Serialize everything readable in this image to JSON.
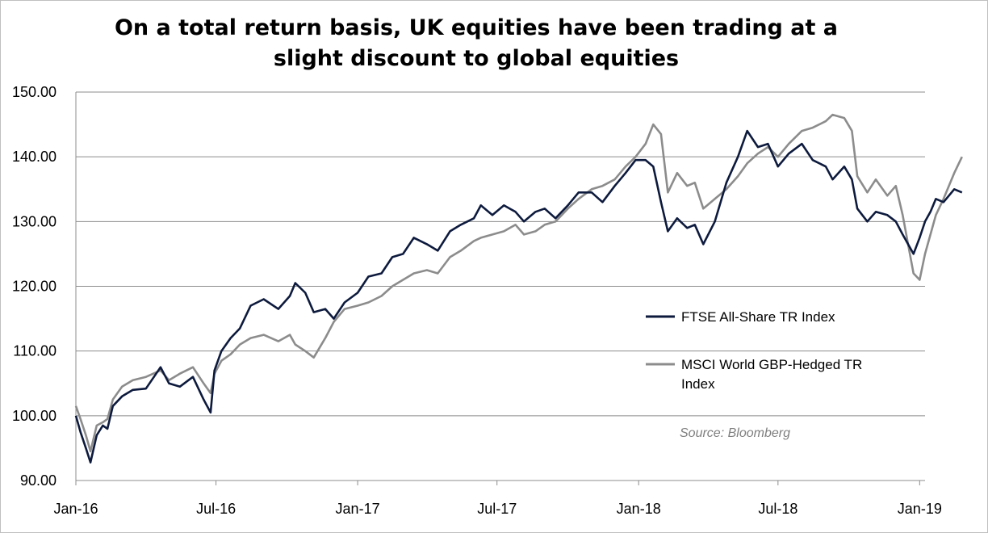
{
  "chart_data": {
    "type": "line",
    "title_line1": "On a total return basis, UK equities have been trading at a",
    "title_line2": "slight discount to global equities",
    "xlabel": "",
    "ylabel": "",
    "ylim": [
      90,
      150
    ],
    "y_ticks": [
      "90.00",
      "100.00",
      "110.00",
      "120.00",
      "130.00",
      "140.00",
      "150.00"
    ],
    "x_ticks": [
      "Jan-16",
      "Jul-16",
      "Jan-17",
      "Jul-17",
      "Jan-18",
      "Jul-18",
      "Jan-19"
    ],
    "x_tick_dates": [
      "2016-01-01",
      "2016-07-01",
      "2017-01-01",
      "2017-07-01",
      "2018-01-01",
      "2018-07-01",
      "2019-01-01"
    ],
    "x_range": [
      "2016-01-01",
      "2019-01-08"
    ],
    "grid": "horizontal",
    "legend_placement": "right",
    "source": "Source: Bloomberg",
    "series": [
      {
        "name": "FTSE All-Share TR Index",
        "color": "#0d1a3d",
        "points": [
          [
            "2016-01-01",
            100.0
          ],
          [
            "2016-01-07",
            97.5
          ],
          [
            "2016-01-14",
            95.0
          ],
          [
            "2016-01-20",
            92.8
          ],
          [
            "2016-01-28",
            97.0
          ],
          [
            "2016-02-05",
            98.5
          ],
          [
            "2016-02-11",
            98.0
          ],
          [
            "2016-02-18",
            101.5
          ],
          [
            "2016-03-01",
            103.0
          ],
          [
            "2016-03-15",
            104.0
          ],
          [
            "2016-04-01",
            104.2
          ],
          [
            "2016-04-20",
            107.5
          ],
          [
            "2016-05-01",
            105.0
          ],
          [
            "2016-05-15",
            104.5
          ],
          [
            "2016-06-01",
            106.0
          ],
          [
            "2016-06-15",
            102.5
          ],
          [
            "2016-06-24",
            100.5
          ],
          [
            "2016-06-29",
            107.0
          ],
          [
            "2016-07-08",
            110.0
          ],
          [
            "2016-07-20",
            112.0
          ],
          [
            "2016-08-01",
            113.5
          ],
          [
            "2016-08-15",
            117.0
          ],
          [
            "2016-09-01",
            118.0
          ],
          [
            "2016-09-20",
            116.5
          ],
          [
            "2016-10-05",
            118.5
          ],
          [
            "2016-10-12",
            120.5
          ],
          [
            "2016-10-25",
            119.0
          ],
          [
            "2016-11-05",
            116.0
          ],
          [
            "2016-11-20",
            116.5
          ],
          [
            "2016-12-01",
            115.0
          ],
          [
            "2016-12-15",
            117.5
          ],
          [
            "2017-01-01",
            119.0
          ],
          [
            "2017-01-15",
            121.5
          ],
          [
            "2017-02-01",
            122.0
          ],
          [
            "2017-02-15",
            124.5
          ],
          [
            "2017-03-01",
            125.0
          ],
          [
            "2017-03-15",
            127.5
          ],
          [
            "2017-04-01",
            126.5
          ],
          [
            "2017-04-15",
            125.5
          ],
          [
            "2017-05-01",
            128.5
          ],
          [
            "2017-05-15",
            129.5
          ],
          [
            "2017-06-01",
            130.5
          ],
          [
            "2017-06-10",
            132.5
          ],
          [
            "2017-06-25",
            131.0
          ],
          [
            "2017-07-10",
            132.5
          ],
          [
            "2017-07-25",
            131.5
          ],
          [
            "2017-08-05",
            130.0
          ],
          [
            "2017-08-20",
            131.5
          ],
          [
            "2017-09-01",
            132.0
          ],
          [
            "2017-09-15",
            130.5
          ],
          [
            "2017-10-01",
            132.5
          ],
          [
            "2017-10-15",
            134.5
          ],
          [
            "2017-11-01",
            134.5
          ],
          [
            "2017-11-15",
            133.0
          ],
          [
            "2017-12-01",
            135.5
          ],
          [
            "2017-12-15",
            137.5
          ],
          [
            "2017-12-28",
            139.5
          ],
          [
            "2018-01-10",
            139.5
          ],
          [
            "2018-01-20",
            138.5
          ],
          [
            "2018-01-30",
            133.0
          ],
          [
            "2018-02-08",
            128.5
          ],
          [
            "2018-02-20",
            130.5
          ],
          [
            "2018-03-05",
            129.0
          ],
          [
            "2018-03-15",
            129.5
          ],
          [
            "2018-03-26",
            126.5
          ],
          [
            "2018-04-10",
            130.0
          ],
          [
            "2018-04-25",
            136.0
          ],
          [
            "2018-05-10",
            140.0
          ],
          [
            "2018-05-22",
            144.0
          ],
          [
            "2018-06-05",
            141.5
          ],
          [
            "2018-06-18",
            142.0
          ],
          [
            "2018-07-01",
            138.5
          ],
          [
            "2018-07-15",
            140.5
          ],
          [
            "2018-08-01",
            142.0
          ],
          [
            "2018-08-15",
            139.5
          ],
          [
            "2018-09-01",
            138.5
          ],
          [
            "2018-09-10",
            136.5
          ],
          [
            "2018-09-25",
            138.5
          ],
          [
            "2018-10-05",
            136.5
          ],
          [
            "2018-10-12",
            132.0
          ],
          [
            "2018-10-25",
            130.0
          ],
          [
            "2018-11-05",
            131.5
          ],
          [
            "2018-11-20",
            131.0
          ],
          [
            "2018-12-01",
            130.0
          ],
          [
            "2018-12-10",
            128.0
          ],
          [
            "2018-12-24",
            125.0
          ],
          [
            "2019-01-01",
            127.5
          ],
          [
            "2019-01-08",
            130.0
          ],
          [
            "2019-01-15",
            131.5
          ],
          [
            "2019-01-22",
            133.5
          ],
          [
            "2019-02-01",
            133.0
          ],
          [
            "2019-02-15",
            135.0
          ],
          [
            "2019-02-25",
            134.5
          ]
        ]
      },
      {
        "name": "MSCI World GBP-Hedged TR Index",
        "color": "#8c8c8c",
        "points": [
          [
            "2016-01-01",
            101.5
          ],
          [
            "2016-01-07",
            99.5
          ],
          [
            "2016-01-14",
            97.0
          ],
          [
            "2016-01-20",
            94.5
          ],
          [
            "2016-01-28",
            98.5
          ],
          [
            "2016-02-05",
            99.0
          ],
          [
            "2016-02-11",
            99.5
          ],
          [
            "2016-02-18",
            102.5
          ],
          [
            "2016-03-01",
            104.5
          ],
          [
            "2016-03-15",
            105.5
          ],
          [
            "2016-04-01",
            106.0
          ],
          [
            "2016-04-20",
            107.0
          ],
          [
            "2016-05-01",
            105.5
          ],
          [
            "2016-05-15",
            106.5
          ],
          [
            "2016-06-01",
            107.5
          ],
          [
            "2016-06-15",
            105.0
          ],
          [
            "2016-06-24",
            103.5
          ],
          [
            "2016-06-29",
            106.5
          ],
          [
            "2016-07-08",
            108.5
          ],
          [
            "2016-07-20",
            109.5
          ],
          [
            "2016-08-01",
            111.0
          ],
          [
            "2016-08-15",
            112.0
          ],
          [
            "2016-09-01",
            112.5
          ],
          [
            "2016-09-20",
            111.5
          ],
          [
            "2016-10-05",
            112.5
          ],
          [
            "2016-10-12",
            111.0
          ],
          [
            "2016-10-25",
            110.0
          ],
          [
            "2016-11-05",
            109.0
          ],
          [
            "2016-11-20",
            112.0
          ],
          [
            "2016-12-01",
            114.5
          ],
          [
            "2016-12-15",
            116.5
          ],
          [
            "2017-01-01",
            117.0
          ],
          [
            "2017-01-15",
            117.5
          ],
          [
            "2017-02-01",
            118.5
          ],
          [
            "2017-02-15",
            120.0
          ],
          [
            "2017-03-01",
            121.0
          ],
          [
            "2017-03-15",
            122.0
          ],
          [
            "2017-04-01",
            122.5
          ],
          [
            "2017-04-15",
            122.0
          ],
          [
            "2017-05-01",
            124.5
          ],
          [
            "2017-05-15",
            125.5
          ],
          [
            "2017-06-01",
            127.0
          ],
          [
            "2017-06-10",
            127.5
          ],
          [
            "2017-06-25",
            128.0
          ],
          [
            "2017-07-10",
            128.5
          ],
          [
            "2017-07-25",
            129.5
          ],
          [
            "2017-08-05",
            128.0
          ],
          [
            "2017-08-20",
            128.5
          ],
          [
            "2017-09-01",
            129.5
          ],
          [
            "2017-09-15",
            130.0
          ],
          [
            "2017-10-01",
            132.0
          ],
          [
            "2017-10-15",
            133.5
          ],
          [
            "2017-11-01",
            135.0
          ],
          [
            "2017-11-15",
            135.5
          ],
          [
            "2017-12-01",
            136.5
          ],
          [
            "2017-12-15",
            138.5
          ],
          [
            "2017-12-28",
            140.0
          ],
          [
            "2018-01-10",
            142.0
          ],
          [
            "2018-01-20",
            145.0
          ],
          [
            "2018-01-30",
            143.5
          ],
          [
            "2018-02-08",
            134.5
          ],
          [
            "2018-02-20",
            137.5
          ],
          [
            "2018-03-05",
            135.5
          ],
          [
            "2018-03-15",
            136.0
          ],
          [
            "2018-03-26",
            132.0
          ],
          [
            "2018-04-10",
            133.5
          ],
          [
            "2018-04-25",
            135.0
          ],
          [
            "2018-05-10",
            137.0
          ],
          [
            "2018-05-22",
            139.0
          ],
          [
            "2018-06-05",
            140.5
          ],
          [
            "2018-06-18",
            141.5
          ],
          [
            "2018-07-01",
            140.0
          ],
          [
            "2018-07-15",
            142.0
          ],
          [
            "2018-08-01",
            144.0
          ],
          [
            "2018-08-15",
            144.5
          ],
          [
            "2018-09-01",
            145.5
          ],
          [
            "2018-09-10",
            146.5
          ],
          [
            "2018-09-25",
            146.0
          ],
          [
            "2018-10-05",
            144.0
          ],
          [
            "2018-10-12",
            137.0
          ],
          [
            "2018-10-25",
            134.5
          ],
          [
            "2018-11-05",
            136.5
          ],
          [
            "2018-11-20",
            134.0
          ],
          [
            "2018-12-01",
            135.5
          ],
          [
            "2018-12-10",
            131.0
          ],
          [
            "2018-12-24",
            122.0
          ],
          [
            "2019-01-01",
            121.0
          ],
          [
            "2019-01-08",
            125.0
          ],
          [
            "2019-01-15",
            128.0
          ],
          [
            "2019-01-22",
            131.0
          ],
          [
            "2019-02-01",
            133.5
          ],
          [
            "2019-02-15",
            137.5
          ],
          [
            "2019-02-25",
            140.0
          ]
        ]
      }
    ]
  }
}
